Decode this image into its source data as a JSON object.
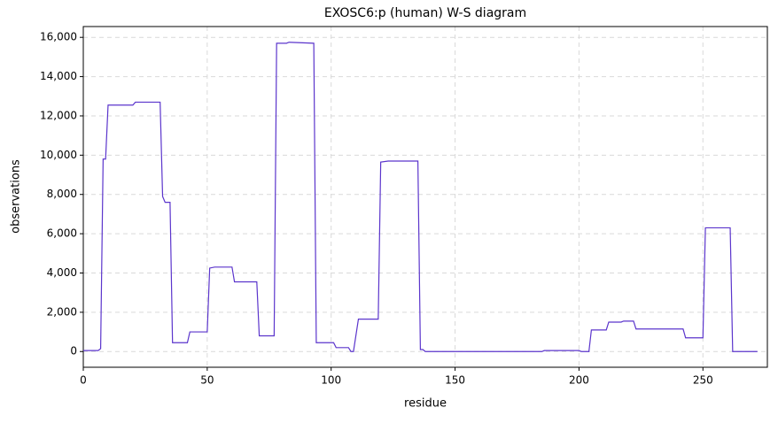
{
  "chart_data": {
    "type": "line",
    "title": "EXOSC6:p (human) W-S diagram",
    "x_label": "residue",
    "y_label": "observations",
    "x": [
      0,
      6,
      7,
      8,
      9,
      10,
      20,
      21,
      31,
      32,
      33,
      35,
      36,
      42,
      43,
      50,
      51,
      53,
      60,
      61,
      70,
      71,
      77,
      78,
      82,
      83,
      93,
      94,
      101,
      102,
      107,
      108,
      109,
      111,
      119,
      120,
      123,
      135,
      136,
      137,
      138,
      185,
      186,
      200,
      201,
      204,
      205,
      211,
      212,
      217,
      218,
      222,
      223,
      242,
      243,
      250,
      251,
      261,
      262,
      272
    ],
    "series": [
      {
        "name": "observations",
        "color": "#5b35cc",
        "values": [
          50,
          50,
          150,
          9800,
          9800,
          12550,
          12550,
          12700,
          12700,
          7900,
          7600,
          7600,
          450,
          450,
          1000,
          1000,
          4250,
          4300,
          4300,
          3550,
          3550,
          800,
          800,
          15700,
          15700,
          15750,
          15700,
          450,
          450,
          200,
          200,
          0,
          0,
          1650,
          1650,
          9650,
          9700,
          9700,
          100,
          100,
          0,
          0,
          50,
          50,
          0,
          0,
          1100,
          1100,
          1500,
          1500,
          1550,
          1550,
          1150,
          1150,
          700,
          700,
          6300,
          6300,
          0,
          0
        ]
      }
    ],
    "xlim": [
      0,
      276
    ],
    "ylim": [
      -800,
      16550
    ],
    "xticks": [
      0,
      50,
      100,
      150,
      200,
      250
    ],
    "yticks": [
      0,
      {
        "value": 2000,
        "label": "2,000"
      },
      {
        "value": 4000,
        "label": "4,000"
      },
      {
        "value": 6000,
        "label": "6,000"
      },
      {
        "value": 8000,
        "label": "8,000"
      },
      {
        "value": 10000,
        "label": "10,000"
      },
      {
        "value": 12000,
        "label": "12,000"
      },
      {
        "value": 14000,
        "label": "14,000"
      },
      {
        "value": 16000,
        "label": "16,000"
      }
    ],
    "grid": true
  }
}
